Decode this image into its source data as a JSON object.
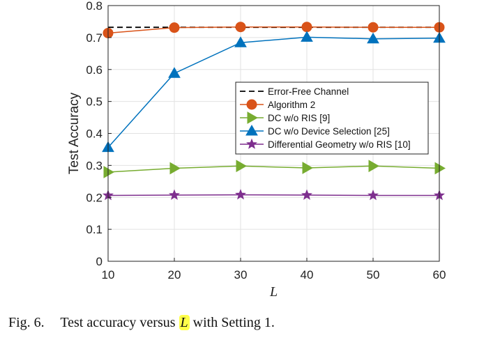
{
  "chart_data": {
    "type": "line",
    "xlabel": "L",
    "ylabel": "Test Accuracy",
    "xlim": [
      10,
      60
    ],
    "ylim": [
      0,
      0.8
    ],
    "x": [
      10,
      20,
      30,
      40,
      50,
      60
    ],
    "xticks": [
      "10",
      "20",
      "30",
      "40",
      "50",
      "60"
    ],
    "yticks": [
      "0",
      "0.1",
      "0.2",
      "0.3",
      "0.4",
      "0.5",
      "0.6",
      "0.7",
      "0.8"
    ],
    "grid": true,
    "legend_position": "center-right",
    "series": [
      {
        "name": "Error-Free Channel",
        "values": [
          0.732,
          0.732,
          0.732,
          0.732,
          0.732,
          0.732
        ],
        "color": "#000000",
        "marker": "none",
        "dash": true
      },
      {
        "name": "Algorithm 2",
        "values": [
          0.714,
          0.731,
          0.733,
          0.733,
          0.732,
          0.732
        ],
        "color": "#d95319",
        "marker": "circle"
      },
      {
        "name": "DC w/o RIS [9]",
        "values": [
          0.279,
          0.291,
          0.298,
          0.292,
          0.298,
          0.291
        ],
        "color": "#77ac30",
        "marker": "triangle-right"
      },
      {
        "name": "DC w/o Device Selection [25]",
        "values": [
          0.356,
          0.588,
          0.684,
          0.701,
          0.696,
          0.698
        ],
        "color": "#0072bd",
        "marker": "triangle-up"
      },
      {
        "name": "Differential Geometry w/o RIS [10]",
        "values": [
          0.206,
          0.207,
          0.208,
          0.207,
          0.206,
          0.206
        ],
        "color": "#7e2f8e",
        "marker": "star"
      }
    ]
  },
  "caption": {
    "label": "Fig. 6.",
    "text_before": "Test accuracy versus",
    "variable": "L",
    "text_after": "with Setting 1."
  }
}
